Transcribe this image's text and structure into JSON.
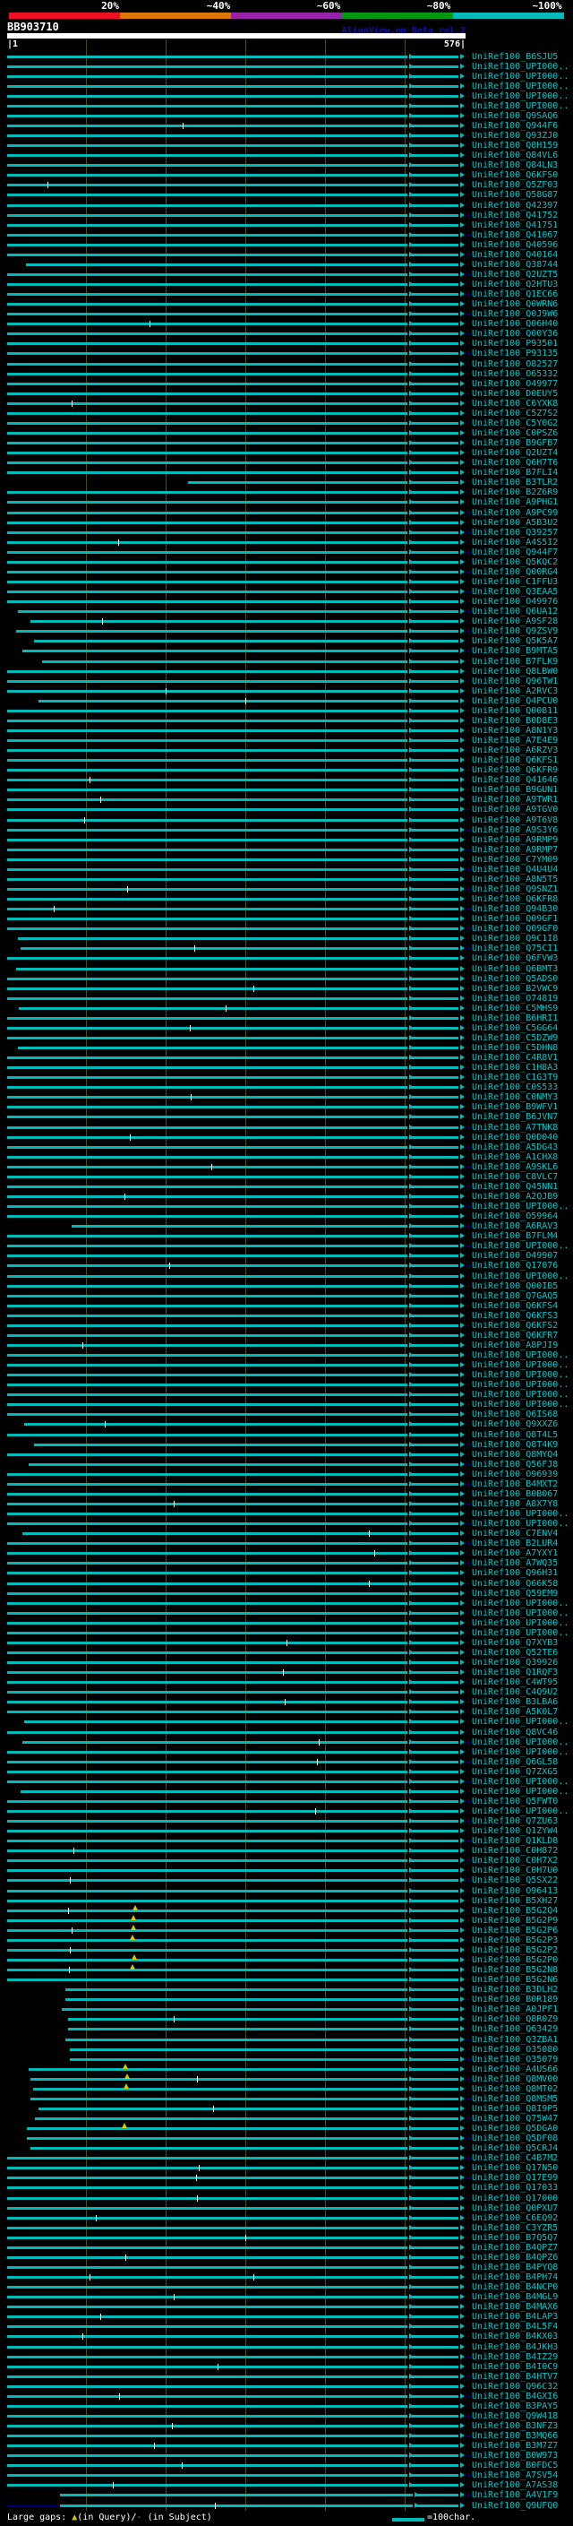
{
  "header": {
    "scale_labels": [
      "20%",
      "~40%",
      "~60%",
      "~80%",
      "~100%"
    ],
    "scale_colors": [
      "#ee1122",
      "#dd7700",
      "#9922aa",
      "#009911",
      "#00b9b9"
    ]
  },
  "query": {
    "id": "BB903710",
    "app_title": "AlignView.pm Beta rel.2",
    "ruler_start_label": "|1",
    "ruler_end_label": "576|",
    "length": 576,
    "tick_positions": [
      100,
      200,
      300,
      400,
      500
    ]
  },
  "legend": {
    "large_gaps_prefix": "Large gaps: ",
    "tri_symbol": "▲",
    "in_query_part": "(in Query)/",
    "dash_symbol": "-",
    "in_subject_part": " (in Subject)",
    "scale_text": "=100char."
  },
  "colors": {
    "background": "#000000",
    "bar": "#00b9b9",
    "label": "#00c6c6",
    "title": "#12129a",
    "ruler": "#ffffff",
    "grid": "#4b4b15",
    "lead": "#00007d",
    "dash_mark": "#ffffff",
    "tri_mark": "#d8c800"
  },
  "rows": {
    "count": 248,
    "defaults": {
      "start": 1,
      "end": 576,
      "arrows": [
        512
      ],
      "lead_right": "alternate-even"
    },
    "labels": [
      "UniRef100_B6SJU5",
      "UniRef100_UPI000..",
      "UniRef100_UPI000..",
      "UniRef100_UPI000..",
      "UniRef100_UPI000..",
      "UniRef100_UPI000..",
      "UniRef100_Q9SAQ6",
      "UniRef100_Q944F6",
      "UniRef100_Q93ZJ0",
      "UniRef100_Q8H159",
      "UniRef100_Q84VL6",
      "UniRef100_Q84LN3",
      "UniRef100_Q6KFS0",
      "UniRef100_Q5ZF03",
      "UniRef100_Q58G87",
      "UniRef100_Q42397",
      "UniRef100_Q41752",
      "UniRef100_Q41751",
      "UniRef100_Q41067",
      "UniRef100_Q40596",
      "UniRef100_Q40164",
      "UniRef100_Q38744",
      "UniRef100_Q2UZT5",
      "UniRef100_Q2HTU3",
      "UniRef100_Q1EC66",
      "UniRef100_Q0WRN6",
      "UniRef100_Q0J9W6",
      "UniRef100_Q06H40",
      "UniRef100_Q00Y36",
      "UniRef100_P93501",
      "UniRef100_P93135",
      "UniRef100_O82527",
      "UniRef100_O65332",
      "UniRef100_O49977",
      "UniRef100_D0EUY5",
      "UniRef100_C6YXK8",
      "UniRef100_C5Z7S2",
      "UniRef100_C5Y0G2",
      "UniRef100_C0PSZ6",
      "UniRef100_B9GFB7",
      "UniRef100_Q2UZT4",
      "UniRef100_Q6H7T6",
      "UniRef100_B7FLI4",
      "UniRef100_B3TLR2",
      "UniRef100_B2Z6R9",
      "UniRef100_A9PHG1",
      "UniRef100_A9PC99",
      "UniRef100_A5B3U2",
      "UniRef100_Q39257",
      "UniRef100_A4S5I2",
      "UniRef100_Q944F7",
      "UniRef100_Q5KQC2",
      "UniRef100_Q00RG4",
      "UniRef100_C1FFU3",
      "UniRef100_Q3EAA5",
      "UniRef100_O49976",
      "UniRef100_Q6UA12",
      "UniRef100_A9SF28",
      "UniRef100_Q9ZSV9",
      "UniRef100_Q5K5A7",
      "UniRef100_B9MTA5",
      "UniRef100_B7FLK9",
      "UniRef100_Q8LBW0",
      "UniRef100_Q96TW1",
      "UniRef100_A2RVC3",
      "UniRef100_Q4PCU0",
      "UniRef100_Q00811",
      "UniRef100_B0D8E3",
      "UniRef100_A8N1Y3",
      "UniRef100_A7E4E9",
      "UniRef100_A6RZV3",
      "UniRef100_Q6KFS1",
      "UniRef100_Q6KFR9",
      "UniRef100_Q41646",
      "UniRef100_B9GUN1",
      "UniRef100_A9TWR1",
      "UniRef100_A9TGV0",
      "UniRef100_A9T6V8",
      "UniRef100_A9S3Y6",
      "UniRef100_A9RMP9",
      "UniRef100_A9RMP7",
      "UniRef100_C7YM09",
      "UniRef100_Q4U4U4",
      "UniRef100_A8N5T5",
      "UniRef100_Q9SNZ1",
      "UniRef100_Q6KFR8",
      "UniRef100_Q94B30",
      "UniRef100_Q09GF1",
      "UniRef100_Q09GF0",
      "UniRef100_Q9C1I8",
      "UniRef100_Q75CI1",
      "UniRef100_Q6FVW3",
      "UniRef100_Q6BMT3",
      "UniRef100_Q5ADS0",
      "UniRef100_B2VWC9",
      "UniRef100_O74819",
      "UniRef100_C5MHS9",
      "UniRef100_B6HRI1",
      "UniRef100_C5GG64",
      "UniRef100_C5DZW9",
      "UniRef100_C5DHN8",
      "UniRef100_C4R8V1",
      "UniRef100_C1H8A3",
      "UniRef100_C1G3T9",
      "UniRef100_C0S533",
      "UniRef100_C0NMY3",
      "UniRef100_B9WFV1",
      "UniRef100_B6JVN7",
      "UniRef100_A7TNK8",
      "UniRef100_Q0D040",
      "UniRef100_A5DG43",
      "UniRef100_A1CHX8",
      "UniRef100_A9SKL6",
      "UniRef100_C8VLC7",
      "UniRef100_Q45NN1",
      "UniRef100_A2QJB9",
      "UniRef100_UPI000..",
      "UniRef100_O59964",
      "UniRef100_A6RAV3",
      "UniRef100_B7FLM4",
      "UniRef100_UPI000..",
      "UniRef100_O49907",
      "UniRef100_Q17076",
      "UniRef100_UPI000..",
      "UniRef100_Q00IB5",
      "UniRef100_Q7GAQ5",
      "UniRef100_Q6KFS4",
      "UniRef100_Q6KFS3",
      "UniRef100_Q6KFS2",
      "UniRef100_Q6KFR7",
      "UniRef100_A8PJI9",
      "UniRef100_UPI000..",
      "UniRef100_UPI000..",
      "UniRef100_UPI000..",
      "UniRef100_UPI000..",
      "UniRef100_UPI000..",
      "UniRef100_UPI000..",
      "UniRef100_Q6IS68",
      "UniRef100_Q9XXZ6",
      "UniRef100_Q8T4L5",
      "UniRef100_Q8T4K9",
      "UniRef100_Q8MYQ4",
      "UniRef100_Q56FJ8",
      "UniRef100_O96939",
      "UniRef100_B4MXT2",
      "UniRef100_B0B067",
      "UniRef100_A8X7Y8",
      "UniRef100_UPI000..",
      "UniRef100_UPI000..",
      "UniRef100_C7ENV4",
      "UniRef100_B2LUR4",
      "UniRef100_A7YXY1",
      "UniRef100_A7WQ35",
      "UniRef100_Q96H31",
      "UniRef100_Q66K58",
      "UniRef100_Q59EM9",
      "UniRef100_UPI000..",
      "UniRef100_UPI000..",
      "UniRef100_UPI000..",
      "UniRef100_UPI000..",
      "UniRef100_Q7XYB3",
      "UniRef100_Q52TE6",
      "UniRef100_Q39926",
      "UniRef100_Q1RQF3",
      "UniRef100_C4WT95",
      "UniRef100_C4Q9U2",
      "UniRef100_B3LBA6",
      "UniRef100_A5K0L7",
      "UniRef100_UPI000..",
      "UniRef100_Q8VC46",
      "UniRef100_UPI000..",
      "UniRef100_UPI000..",
      "UniRef100_Q6GL58",
      "UniRef100_Q7ZXG5",
      "UniRef100_UPI000..",
      "UniRef100_UPI000..",
      "UniRef100_Q5FWT0",
      "UniRef100_UPI000..",
      "UniRef100_Q7ZU63",
      "UniRef100_Q1ZYW4",
      "UniRef100_Q1KLD8",
      "UniRef100_C0H872",
      "UniRef100_C0H7X2",
      "UniRef100_C0H7U0",
      "UniRef100_Q5SX22",
      "UniRef100_O96413",
      "UniRef100_B5XH27",
      "UniRef100_B5G2Q4",
      "UniRef100_B5G2P9",
      "UniRef100_B5G2P6",
      "UniRef100_B5G2P3",
      "UniRef100_B5G2P2",
      "UniRef100_B5G2P0",
      "UniRef100_B5G2N8",
      "UniRef100_B5G2N6",
      "UniRef100_B3DLH2",
      "UniRef100_B0R189",
      "UniRef100_A0JPF1",
      "UniRef100_Q8R0Z9",
      "UniRef100_Q63429",
      "UniRef100_Q3ZBA1",
      "UniRef100_O35080",
      "UniRef100_O35079",
      "UniRef100_A4US66",
      "UniRef100_Q8MV00",
      "UniRef100_Q8MT02",
      "UniRef100_Q8MSM5",
      "UniRef100_Q8I9P5",
      "UniRef100_Q75W47",
      "UniRef100_Q5DGA0",
      "UniRef100_Q5DF08",
      "UniRef100_Q5CRJ4",
      "UniRef100_C4B7M2",
      "UniRef100_Q17N50",
      "UniRef100_Q17E99",
      "UniRef100_Q17033",
      "UniRef100_Q17000",
      "UniRef100_Q0PXU7",
      "UniRef100_C6EQ92",
      "UniRef100_C3YZR5",
      "UniRef100_B7Q5Q7",
      "UniRef100_B4QPZ7",
      "UniRef100_B4QPZ6",
      "UniRef100_B4PYQ8",
      "UniRef100_B4PH74",
      "UniRef100_B4NCP0",
      "UniRef100_B4MGL9",
      "UniRef100_B4MAX6",
      "UniRef100_B4LAP3",
      "UniRef100_B4L5F4",
      "UniRef100_B4KX03",
      "UniRef100_B4JKH3",
      "UniRef100_B4IZ29",
      "UniRef100_B4I0C9",
      "UniRef100_B4HTV7",
      "UniRef100_Q96C32",
      "UniRef100_B4GXI6",
      "UniRef100_B3PAY5",
      "UniRef100_Q9W418",
      "UniRef100_B3NFZ3",
      "UniRef100_B3MQ66",
      "UniRef100_B3M7Z7",
      "UniRef100_B0W973",
      "UniRef100_B0FDC5",
      "UniRef100_A7SV54",
      "UniRef100_A7AS38",
      "UniRef100_A4V1F9",
      "UniRef100_Q9UFQ0"
    ],
    "overrides": {
      "7": {
        "d": [
          222
        ]
      },
      "13": {
        "d": [
          52
        ]
      },
      "21": {
        "s": 25
      },
      "27": {
        "d": [
          180
        ]
      },
      "35": {
        "d": [
          82
        ]
      },
      "43": {
        "s": 228
      },
      "49": {
        "d": [
          140
        ]
      },
      "56": {
        "s": 15
      },
      "57": {
        "s": 30,
        "d": [
          120
        ]
      },
      "58": {
        "s": 12
      },
      "59": {
        "s": 35
      },
      "60": {
        "s": 20
      },
      "61": {
        "s": 45
      },
      "64": {
        "d": [
          200
        ]
      },
      "65": {
        "s": 40,
        "d": [
          300
        ]
      },
      "73": {
        "d": [
          105
        ]
      },
      "75": {
        "d": [
          118
        ]
      },
      "77": {
        "d": [
          98
        ]
      },
      "84": {
        "d": [
          152
        ]
      },
      "86": {
        "d": [
          60
        ]
      },
      "89": {
        "s": 14
      },
      "90": {
        "s": 18,
        "d": [
          236
        ]
      },
      "92": {
        "s": 12
      },
      "94": {
        "d": [
          310
        ]
      },
      "96": {
        "s": 16,
        "d": [
          275
        ]
      },
      "98": {
        "d": [
          230
        ]
      },
      "100": {
        "s": 14
      },
      "105": {
        "d": [
          232
        ]
      },
      "109": {
        "d": [
          155
        ]
      },
      "112": {
        "d": [
          258
        ]
      },
      "115": {
        "d": [
          148
        ]
      },
      "118": {
        "s": 82
      },
      "122": {
        "d": [
          205
        ]
      },
      "130": {
        "d": [
          96
        ]
      },
      "138": {
        "s": 22,
        "d": [
          124
        ]
      },
      "140": {
        "s": 35
      },
      "142": {
        "s": 28
      },
      "146": {
        "d": [
          210
        ]
      },
      "149": {
        "s": 20,
        "d": [
          455
        ]
      },
      "151": {
        "d": [
          462
        ]
      },
      "154": {
        "d": [
          455
        ]
      },
      "160": {
        "d": [
          352
        ]
      },
      "163": {
        "d": [
          348
        ]
      },
      "166": {
        "d": [
          350
        ]
      },
      "168": {
        "s": 22
      },
      "170": {
        "s": 20,
        "d": [
          392
        ]
      },
      "172": {
        "d": [
          390
        ]
      },
      "175": {
        "s": 18
      },
      "177": {
        "d": [
          388
        ]
      },
      "181": {
        "d": [
          84
        ]
      },
      "184": {
        "d": [
          80
        ]
      },
      "187": {
        "d": [
          78
        ],
        "t": [
          162
        ]
      },
      "188": {
        "t": [
          160
        ]
      },
      "189": {
        "d": [
          82
        ],
        "t": [
          160
        ]
      },
      "190": {
        "t": [
          158
        ]
      },
      "191": {
        "d": [
          80
        ]
      },
      "192": {
        "t": [
          161
        ]
      },
      "193": {
        "d": [
          79
        ],
        "t": [
          159
        ]
      },
      "195": {
        "s": 74
      },
      "196": {
        "s": 74
      },
      "197": {
        "s": 70
      },
      "198": {
        "s": 78,
        "d": [
          210
        ]
      },
      "199": {
        "s": 78
      },
      "200": {
        "s": 74
      },
      "201": {
        "s": 80
      },
      "202": {
        "s": 80
      },
      "203": {
        "s": 28,
        "t": [
          150
        ]
      },
      "204": {
        "s": 30,
        "t": [
          152
        ],
        "d": [
          240
        ]
      },
      "205": {
        "s": 34,
        "t": [
          151
        ]
      },
      "206": {
        "s": 30
      },
      "207": {
        "s": 40,
        "d": [
          260
        ]
      },
      "208": {
        "s": 36
      },
      "209": {
        "s": 26,
        "t": [
          148
        ]
      },
      "210": {
        "s": 26
      },
      "211": {
        "s": 30
      },
      "213": {
        "d": [
          242
        ]
      },
      "214": {
        "d": [
          238
        ]
      },
      "216": {
        "d": [
          240
        ]
      },
      "218": {
        "d": [
          112
        ]
      },
      "220": {
        "d": [
          300
        ]
      },
      "222": {
        "d": [
          150
        ]
      },
      "224": {
        "d": [
          105,
          310
        ]
      },
      "226": {
        "d": [
          210
        ]
      },
      "228": {
        "d": [
          118
        ]
      },
      "230": {
        "d": [
          95
        ]
      },
      "233": {
        "d": [
          265
        ]
      },
      "236": {
        "d": [
          142
        ]
      },
      "239": {
        "d": [
          208
        ]
      },
      "241": {
        "d": [
          186
        ]
      },
      "243": {
        "d": [
          220
        ]
      },
      "245": {
        "d": [
          134
        ]
      },
      "246": {
        "s": 67,
        "a": [
          518
        ]
      },
      "247": {
        "s": 67,
        "ll": 1,
        "a": [
          518
        ],
        "d": [
          262
        ]
      }
    }
  }
}
